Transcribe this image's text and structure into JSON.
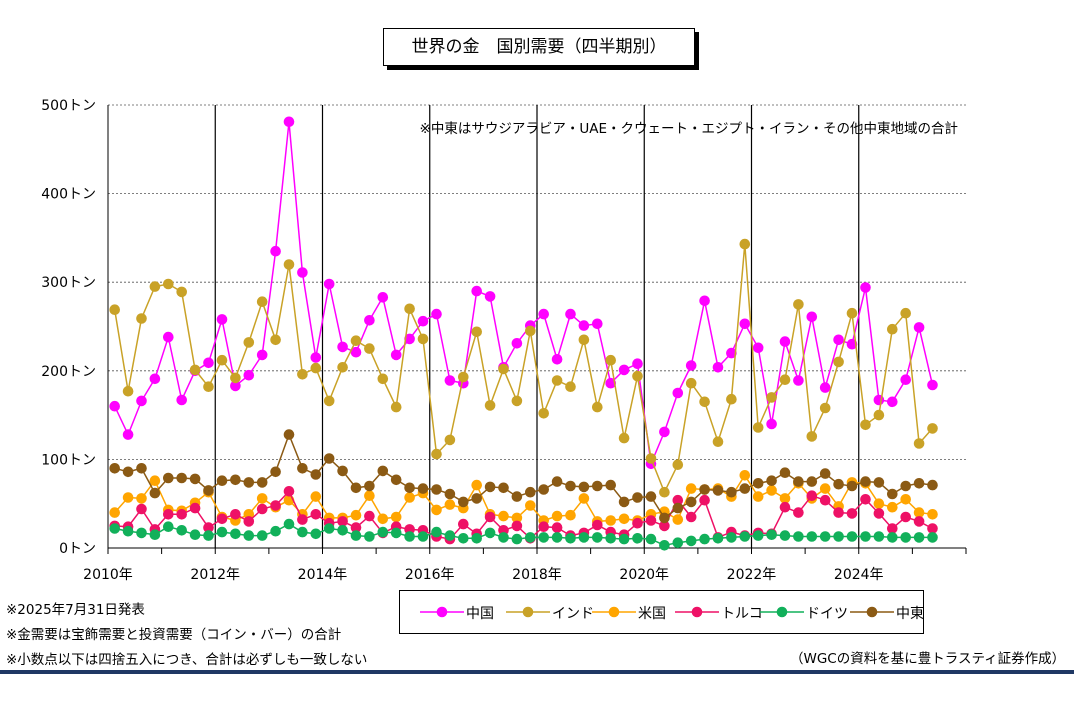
{
  "title": "世界の金　国別需要（四半期別）",
  "chart_data": {
    "type": "line",
    "subtype": "line-with-markers",
    "annotation": "※中東はサウジアラビア・UAE・クウェート・エジプト・イラン・その他中東地域の合計",
    "y_unit": "トン",
    "y_ticks": [
      "0トン",
      "100トン",
      "200トン",
      "300トン",
      "400トン",
      "500トン"
    ],
    "x_ticks": [
      "2010年",
      "2012年",
      "2014年",
      "2016年",
      "2018年",
      "2020年",
      "2022年",
      "2024年"
    ],
    "ylim": [
      0,
      500
    ],
    "xlim": [
      2010,
      2026
    ],
    "x_start_year": 2010,
    "grid": true,
    "legend_position": "bottom",
    "series": [
      {
        "name": "中国",
        "color": "#ff00ff",
        "values": [
          160,
          128,
          166,
          191,
          238,
          167,
          200,
          209,
          258,
          183,
          195,
          218,
          335,
          481,
          311,
          215,
          298,
          227,
          221,
          257,
          283,
          218,
          236,
          256,
          264,
          189,
          186,
          290,
          284,
          204,
          231,
          251,
          264,
          213,
          264,
          251,
          253,
          186,
          201,
          208,
          95,
          131,
          175,
          206,
          279,
          204,
          220,
          253,
          226,
          140,
          233,
          189,
          261,
          181,
          235,
          230,
          294,
          167,
          165,
          190,
          249,
          184
        ]
      },
      {
        "name": "インド",
        "color": "#c9a227",
        "values": [
          269,
          177,
          259,
          295,
          298,
          289,
          201,
          182,
          212,
          192,
          232,
          278,
          235,
          320,
          196,
          203,
          166,
          204,
          234,
          225,
          191,
          159,
          270,
          236,
          106,
          122,
          193,
          244,
          161,
          202,
          166,
          245,
          152,
          189,
          182,
          235,
          159,
          212,
          124,
          194,
          101,
          63,
          94,
          186,
          165,
          120,
          168,
          343,
          136,
          170,
          190,
          275,
          126,
          158,
          210,
          265,
          139,
          150,
          247,
          265,
          118,
          135
        ]
      },
      {
        "name": "米国",
        "color": "#ffa500",
        "values": [
          40,
          57,
          56,
          76,
          43,
          42,
          51,
          63,
          35,
          31,
          38,
          56,
          46,
          54,
          38,
          58,
          34,
          34,
          37,
          59,
          33,
          35,
          57,
          62,
          43,
          49,
          45,
          71,
          38,
          36,
          34,
          48,
          31,
          36,
          37,
          56,
          30,
          31,
          33,
          31,
          38,
          41,
          32,
          67,
          66,
          67,
          58,
          82,
          58,
          65,
          56,
          73,
          56,
          67,
          47,
          74,
          73,
          50,
          46,
          55,
          40,
          38
        ]
      },
      {
        "name": "トルコ",
        "color": "#ee1166",
        "values": [
          25,
          24,
          44,
          21,
          38,
          38,
          45,
          23,
          33,
          38,
          30,
          44,
          48,
          64,
          32,
          38,
          28,
          30,
          23,
          36,
          17,
          24,
          21,
          20,
          13,
          10,
          27,
          16,
          35,
          20,
          25,
          11,
          24,
          23,
          14,
          17,
          26,
          18,
          15,
          28,
          31,
          25,
          54,
          35,
          54,
          12,
          18,
          14,
          17,
          16,
          46,
          40,
          59,
          54,
          40,
          39,
          55,
          39,
          22,
          35,
          30,
          22
        ]
      },
      {
        "name": "ドイツ",
        "color": "#11b05a",
        "values": [
          22,
          19,
          17,
          15,
          24,
          20,
          15,
          14,
          18,
          16,
          14,
          14,
          19,
          27,
          18,
          16,
          22,
          20,
          14,
          13,
          18,
          17,
          13,
          13,
          18,
          14,
          11,
          11,
          17,
          12,
          10,
          12,
          12,
          12,
          11,
          12,
          12,
          11,
          10,
          11,
          10,
          3,
          6,
          8,
          10,
          11,
          12,
          13,
          14,
          15,
          14,
          13,
          13,
          13,
          13,
          13,
          13,
          13,
          12,
          12,
          12,
          12
        ]
      },
      {
        "name": "中東",
        "color": "#8b5a14",
        "values": [
          90,
          86,
          90,
          62,
          79,
          79,
          78,
          65,
          76,
          77,
          74,
          74,
          86,
          128,
          90,
          83,
          101,
          87,
          68,
          70,
          87,
          77,
          68,
          67,
          66,
          61,
          52,
          56,
          69,
          68,
          58,
          63,
          66,
          75,
          70,
          69,
          70,
          71,
          52,
          57,
          58,
          34,
          45,
          52,
          66,
          65,
          63,
          67,
          73,
          76,
          85,
          75,
          75,
          84,
          72,
          70,
          75,
          74,
          61,
          70,
          73,
          71
        ]
      }
    ]
  },
  "notes": [
    "※2025年7月31日発表",
    "※金需要は宝飾需要と投資需要（コイン・バー）の合計",
    "※小数点以下は四捨五入につき、合計は必ずしも一致しない"
  ],
  "source": "（WGCの資料を基に豊トラスティ証券作成）"
}
